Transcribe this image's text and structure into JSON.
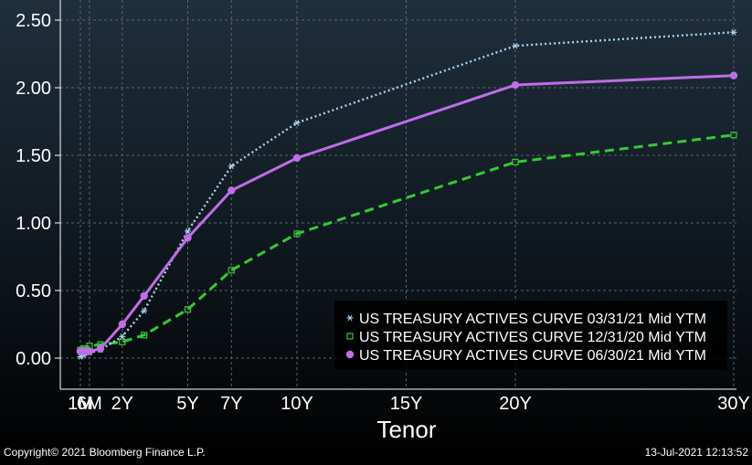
{
  "chart_data": {
    "type": "line",
    "xlabel": "Tenor",
    "ylabel": "",
    "title": "",
    "xlim": [
      0,
      30
    ],
    "ylim": [
      -0.25,
      2.6
    ],
    "x_ticks": [
      {
        "value": 0.083,
        "label": "1M"
      },
      {
        "value": 0.5,
        "label": "6M"
      },
      {
        "value": 2,
        "label": "2Y"
      },
      {
        "value": 5,
        "label": "5Y"
      },
      {
        "value": 7,
        "label": "7Y"
      },
      {
        "value": 10,
        "label": "10Y"
      },
      {
        "value": 15,
        "label": "15Y"
      },
      {
        "value": 20,
        "label": "20Y"
      },
      {
        "value": 30,
        "label": "30Y"
      }
    ],
    "y_ticks": [
      {
        "value": 0,
        "label": "0.00"
      },
      {
        "value": 0.5,
        "label": "0.50"
      },
      {
        "value": 1,
        "label": "1.00"
      },
      {
        "value": 1.5,
        "label": "1.50"
      },
      {
        "value": 2,
        "label": "2.00"
      },
      {
        "value": 2.5,
        "label": "2.50"
      }
    ],
    "grid": true,
    "legend_position": "bottom-right",
    "series": [
      {
        "name": "US TREASURY ACTIVES CURVE 03/31/21 Mid YTM",
        "color": "#a9d4f5",
        "style": "dotted",
        "marker": "asterisk",
        "x": [
          0.083,
          0.25,
          0.5,
          1,
          2,
          3,
          5,
          7,
          10,
          20,
          30
        ],
        "y": [
          0.01,
          0.02,
          0.04,
          0.06,
          0.16,
          0.35,
          0.94,
          1.42,
          1.74,
          2.31,
          2.41
        ]
      },
      {
        "name": "US TREASURY ACTIVES CURVE 12/31/20 Mid YTM",
        "color": "#33cc33",
        "style": "dashed",
        "marker": "square",
        "x": [
          0.083,
          0.25,
          0.5,
          1,
          2,
          3,
          5,
          7,
          10,
          20,
          30
        ],
        "y": [
          0.06,
          0.07,
          0.09,
          0.1,
          0.12,
          0.17,
          0.36,
          0.65,
          0.92,
          1.45,
          1.65
        ]
      },
      {
        "name": "US TREASURY ACTIVES CURVE 06/30/21 Mid YTM",
        "color": "#bf6ee6",
        "style": "solid",
        "marker": "circle",
        "x": [
          0.083,
          0.25,
          0.5,
          1,
          2,
          3,
          5,
          7,
          10,
          20,
          30
        ],
        "y": [
          0.05,
          0.05,
          0.05,
          0.07,
          0.25,
          0.46,
          0.89,
          1.24,
          1.48,
          2.02,
          2.09
        ]
      }
    ]
  },
  "footer": {
    "copyright": "Copyright© 2021 Bloomberg Finance L.P.",
    "timestamp": "13-Jul-2021 12:13:52"
  }
}
